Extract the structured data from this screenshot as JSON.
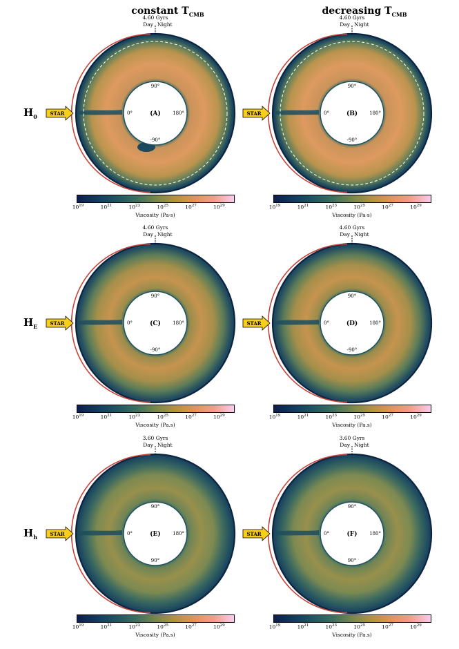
{
  "columns": {
    "left": {
      "text": "constant T",
      "sub": "CMB"
    },
    "right": {
      "text": "decreasing T",
      "sub": "CMB"
    }
  },
  "rows": [
    {
      "label": "H",
      "sub": "0"
    },
    {
      "label": "H",
      "sub": "E"
    },
    {
      "label": "H",
      "sub": "h"
    }
  ],
  "colors": {
    "deep": "#1b4a5e",
    "mid": "#a2924b",
    "core": "#d99a5e",
    "star_fill": "#f7cf1a",
    "edge": "#c7443a",
    "colormap": [
      "#0b1f4d",
      "#123a5c",
      "#1f5563",
      "#3b6e5f",
      "#77884b",
      "#b39240",
      "#e2935a",
      "#f39d8c",
      "#f9ccec"
    ]
  },
  "panels": [
    {
      "letter": "(A)",
      "time": "4.60 Gyrs",
      "day": "Day",
      "night": "Night",
      "star": "STAR",
      "deg_top": "90°",
      "deg_left": "0°",
      "deg_right": "180°",
      "deg_bottom": "-90°",
      "dashed_ring": true,
      "plume": true,
      "blob": true
    },
    {
      "letter": "(B)",
      "time": "4.60 Gyrs",
      "day": "Day",
      "night": "Night",
      "star": "STAR",
      "deg_top": "90°",
      "deg_left": "0°",
      "deg_right": "180°",
      "deg_bottom": "-90°",
      "dashed_ring": true,
      "plume": true,
      "blob": false
    },
    {
      "letter": "(C)",
      "time": "4.60 Gyrs",
      "day": "Day",
      "night": "Night",
      "star": "STAR",
      "deg_top": "90°",
      "deg_left": "0°",
      "deg_right": "180°",
      "deg_bottom": "-90°",
      "dashed_ring": false,
      "plume": true,
      "blob": false
    },
    {
      "letter": "(D)",
      "time": "4.60 Gyrs",
      "day": "Day",
      "night": "Night",
      "star": "STAR",
      "deg_top": "90°",
      "deg_left": "0°",
      "deg_right": "180°",
      "deg_bottom": "-90°",
      "dashed_ring": false,
      "plume": true,
      "blob": false
    },
    {
      "letter": "(E)",
      "time": "3.60 Gyrs",
      "day": "Day",
      "night": "Night",
      "star": "STAR",
      "deg_top": "90°",
      "deg_left": "0°",
      "deg_right": "180°",
      "deg_bottom": "90°",
      "dashed_ring": false,
      "plume": true,
      "blob": false
    },
    {
      "letter": "(F)",
      "time": "3.60 Gyrs",
      "day": "Day",
      "night": "Night",
      "star": "STAR",
      "deg_top": "90°",
      "deg_left": "0°",
      "deg_right": "180°",
      "deg_bottom": "90°",
      "dashed_ring": false,
      "plume": true,
      "blob": false
    }
  ],
  "colorbars": [
    {
      "ticks": [
        "19",
        "21",
        "23",
        "25",
        "27",
        "29"
      ],
      "base": "10",
      "title": "Viscosity (Pa·s)"
    },
    {
      "ticks": [
        "19",
        "21",
        "23",
        "25",
        "27",
        "29"
      ],
      "base": "10",
      "title": "Viscosity (Pa·s)"
    },
    {
      "ticks": [
        "19",
        "21",
        "23",
        "25",
        "27",
        "29"
      ],
      "base": "10",
      "title": "Viscosity (Pa.s)"
    },
    {
      "ticks": [
        "19",
        "21",
        "23",
        "25",
        "27",
        "29"
      ],
      "base": "10",
      "title": "Viscosity (Pa.s)"
    },
    {
      "ticks": [
        "19",
        "21",
        "23",
        "25",
        "27",
        "29"
      ],
      "base": "10",
      "title": "Viscosity (Pa.s)"
    },
    {
      "ticks": [
        "19",
        "21",
        "23",
        "25",
        "27",
        "29"
      ],
      "base": "10",
      "title": "Viscosity (Pa.s)"
    }
  ]
}
